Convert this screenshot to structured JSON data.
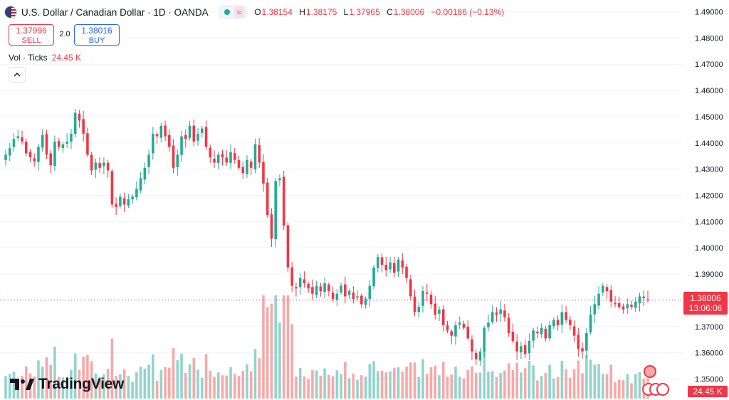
{
  "header": {
    "title": "U.S. Dollar / Canadian Dollar · 1D · OANDA",
    "ohlc": [
      {
        "key": "O",
        "value": "1.38154"
      },
      {
        "key": "H",
        "value": "1.38175"
      },
      {
        "key": "L",
        "value": "1.37965"
      },
      {
        "key": "C",
        "value": "1.38006"
      }
    ],
    "change": "−0.00186 (−0.13%)",
    "wave_icon": "≈"
  },
  "trade": {
    "sell_price": "1.37996",
    "sell_label": "SELL",
    "spread": "2.0",
    "buy_price": "1.38016",
    "buy_label": "BUY"
  },
  "volume_legend": {
    "label": "Vol · Ticks",
    "value": "24.45 K"
  },
  "price_tag": {
    "price": "1.38006",
    "countdown": "13:06:06"
  },
  "volume_tag": "24.45 K",
  "logo_text": "TradingView",
  "colors": {
    "up": "#22ab94",
    "down": "#f23645",
    "vol_up": "#91d4cb",
    "vol_down": "#f7a8a8",
    "grid": "#f0f3fa",
    "text": "#131722"
  },
  "chart_data": {
    "type": "candlestick",
    "symbol": "USDCAD",
    "interval": "1D",
    "y_ticks": [
      "1.49000",
      "1.48000",
      "1.47000",
      "1.46000",
      "1.45000",
      "1.44000",
      "1.43000",
      "1.42000",
      "1.41000",
      "1.40000",
      "1.39000",
      "1.38000",
      "1.37000",
      "1.36000",
      "1.35000"
    ],
    "ylim": [
      1.3466,
      1.4923
    ],
    "current_price": 1.38006,
    "closes": [
      1.4355,
      1.438,
      1.4415,
      1.4425,
      1.4405,
      1.436,
      1.4345,
      1.433,
      1.4385,
      1.443,
      1.4355,
      1.4315,
      1.4405,
      1.4385,
      1.4395,
      1.4405,
      1.4435,
      1.4515,
      1.4485,
      1.4435,
      1.4355,
      1.4295,
      1.4325,
      1.4305,
      1.4325,
      1.4295,
      1.4165,
      1.4155,
      1.4195,
      1.4165,
      1.4185,
      1.4195,
      1.4225,
      1.4265,
      1.4305,
      1.4355,
      1.4435,
      1.4425,
      1.4465,
      1.4425,
      1.4385,
      1.4305,
      1.4355,
      1.4425,
      1.4415,
      1.4465,
      1.4405,
      1.4435,
      1.4455,
      1.4385,
      1.4345,
      1.4325,
      1.4355,
      1.4345,
      1.4325,
      1.4365,
      1.4335,
      1.4305,
      1.4285,
      1.4335,
      1.4305,
      1.4395,
      1.4325,
      1.4245,
      1.4125,
      1.4035,
      1.4255,
      1.4265,
      1.4085,
      1.3925,
      1.3855,
      1.3845,
      1.3885,
      1.3865,
      1.3845,
      1.3825,
      1.3855,
      1.3835,
      1.3865,
      1.3835,
      1.3805,
      1.3825,
      1.3855,
      1.3815,
      1.3835,
      1.3805,
      1.3815,
      1.3785,
      1.3805,
      1.3855,
      1.3925,
      1.3965,
      1.3935,
      1.3915,
      1.3945,
      1.3905,
      1.3955,
      1.3925,
      1.3885,
      1.3815,
      1.3755,
      1.3775,
      1.3835,
      1.3825,
      1.3785,
      1.3745,
      1.3765,
      1.3705,
      1.3685,
      1.3665,
      1.3705,
      1.3715,
      1.3695,
      1.3655,
      1.3605,
      1.3575,
      1.3605,
      1.3695,
      1.3715,
      1.3755,
      1.3745,
      1.3765,
      1.3735,
      1.3675,
      1.3645,
      1.3605,
      1.3625,
      1.3595,
      1.3645,
      1.3685,
      1.3675,
      1.3695,
      1.3655,
      1.3705,
      1.3725,
      1.3705,
      1.3755,
      1.3725,
      1.3705,
      1.3665,
      1.3615,
      1.3605,
      1.3675,
      1.3745,
      1.3785,
      1.3825,
      1.3855,
      1.3835,
      1.3795,
      1.3785,
      1.3775,
      1.3765,
      1.3785,
      1.3775,
      1.3795,
      1.3815,
      1.3808,
      1.38006
    ],
    "volume_up_count": 75,
    "note_volume_peak": "~2x average around the sharp drop"
  }
}
